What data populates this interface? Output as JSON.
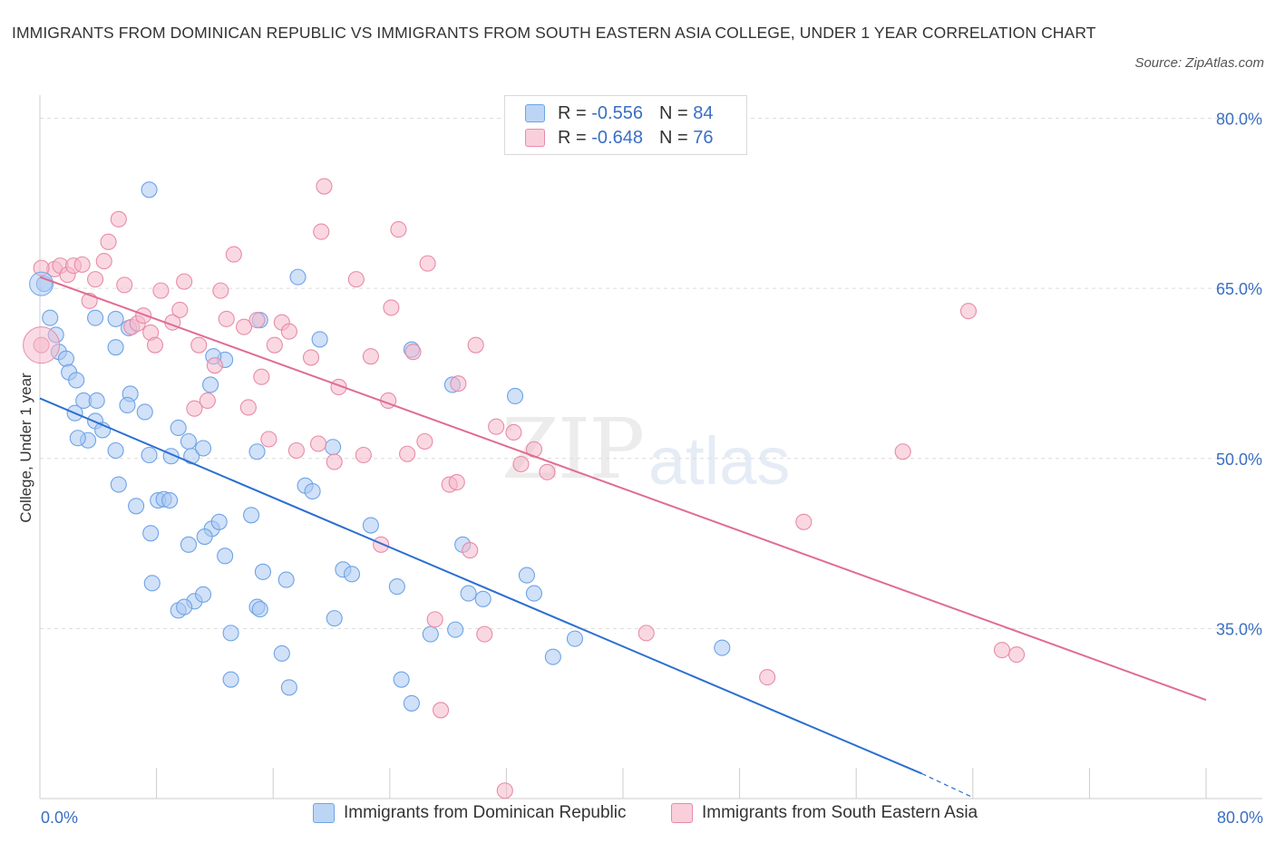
{
  "title": "IMMIGRANTS FROM DOMINICAN REPUBLIC VS IMMIGRANTS FROM SOUTH EASTERN ASIA COLLEGE, UNDER 1 YEAR CORRELATION CHART",
  "source": "Source: ZipAtlas.com",
  "watermark": {
    "zip": "ZIP",
    "atlas": "atlas"
  },
  "legend_top": {
    "rows": [
      {
        "r_label": "R =",
        "r_value": "-0.556",
        "n_label": "N =",
        "n_value": "84",
        "color": "#a9c8f2"
      },
      {
        "r_label": "R =",
        "r_value": "-0.648",
        "n_label": "N =",
        "n_value": "76",
        "color": "#f5b8cb"
      }
    ]
  },
  "chart_data": {
    "type": "scatter",
    "title": "IMMIGRANTS FROM DOMINICAN REPUBLIC VS IMMIGRANTS FROM SOUTH EASTERN ASIA COLLEGE, UNDER 1 YEAR CORRELATION CHART",
    "ylabel": "College, Under 1 year",
    "xlabel": "",
    "xlim": [
      0,
      80
    ],
    "ylim": [
      20,
      81
    ],
    "x_tick_labels": [
      "0.0%",
      "80.0%"
    ],
    "y_ticks": [
      35,
      50,
      65,
      80
    ],
    "y_tick_labels": [
      "35.0%",
      "50.0%",
      "65.0%",
      "80.0%"
    ],
    "grid": "horizontal dashed",
    "legend_position": "bottom",
    "series": [
      {
        "name": "Immigrants from Dominican Republic",
        "color": "#6fa3e6",
        "fill": "#a9c8f2",
        "R": -0.556,
        "N": 84,
        "trend": {
          "x": [
            0,
            60.5
          ],
          "y": [
            55.3,
            22.2
          ],
          "dashed_to": {
            "x": 64,
            "y": 20.1
          }
        },
        "points": [
          [
            0.3,
            65.4
          ],
          [
            0.7,
            62.4
          ],
          [
            1.1,
            60.9
          ],
          [
            1.3,
            59.4
          ],
          [
            1.8,
            58.8
          ],
          [
            2.0,
            57.6
          ],
          [
            2.5,
            56.9
          ],
          [
            3.0,
            55.1
          ],
          [
            2.4,
            54.0
          ],
          [
            3.9,
            55.1
          ],
          [
            3.8,
            53.3
          ],
          [
            4.3,
            52.5
          ],
          [
            3.3,
            51.6
          ],
          [
            2.6,
            51.8
          ],
          [
            5.2,
            50.7
          ],
          [
            6.2,
            55.7
          ],
          [
            6.0,
            54.7
          ],
          [
            7.2,
            54.1
          ],
          [
            5.4,
            47.7
          ],
          [
            6.6,
            45.8
          ],
          [
            7.6,
            43.4
          ],
          [
            8.1,
            46.3
          ],
          [
            8.5,
            46.4
          ],
          [
            8.9,
            46.3
          ],
          [
            9.0,
            50.2
          ],
          [
            7.5,
            50.3
          ],
          [
            9.5,
            52.7
          ],
          [
            10.2,
            51.5
          ],
          [
            10.4,
            50.2
          ],
          [
            11.2,
            50.9
          ],
          [
            11.8,
            43.8
          ],
          [
            12.3,
            44.4
          ],
          [
            10.2,
            42.4
          ],
          [
            11.3,
            43.1
          ],
          [
            12.7,
            41.4
          ],
          [
            7.7,
            39.0
          ],
          [
            10.6,
            37.4
          ],
          [
            11.2,
            38.0
          ],
          [
            9.5,
            36.6
          ],
          [
            9.9,
            36.9
          ],
          [
            13.1,
            34.6
          ],
          [
            13.1,
            30.5
          ],
          [
            14.9,
            50.6
          ],
          [
            15.1,
            62.2
          ],
          [
            12.7,
            58.7
          ],
          [
            11.7,
            56.5
          ],
          [
            14.5,
            45.0
          ],
          [
            15.3,
            40.0
          ],
          [
            14.9,
            36.9
          ],
          [
            15.1,
            36.7
          ],
          [
            16.9,
            39.3
          ],
          [
            17.1,
            29.8
          ],
          [
            16.6,
            32.8
          ],
          [
            18.2,
            47.6
          ],
          [
            18.7,
            47.1
          ],
          [
            20.2,
            35.9
          ],
          [
            20.1,
            51.0
          ],
          [
            20.8,
            40.2
          ],
          [
            21.4,
            39.8
          ],
          [
            22.7,
            44.1
          ],
          [
            24.5,
            38.7
          ],
          [
            24.8,
            30.5
          ],
          [
            25.5,
            28.4
          ],
          [
            26.8,
            34.5
          ],
          [
            25.5,
            59.6
          ],
          [
            28.3,
            56.5
          ],
          [
            28.5,
            34.9
          ],
          [
            29.0,
            42.4
          ],
          [
            29.4,
            38.1
          ],
          [
            30.4,
            37.6
          ],
          [
            32.6,
            55.5
          ],
          [
            33.4,
            39.7
          ],
          [
            33.9,
            38.1
          ],
          [
            35.2,
            32.5
          ],
          [
            36.7,
            34.1
          ],
          [
            46.8,
            33.3
          ],
          [
            7.5,
            73.7
          ],
          [
            17.7,
            66.0
          ],
          [
            19.2,
            60.5
          ],
          [
            3.8,
            62.4
          ],
          [
            5.2,
            62.3
          ],
          [
            6.1,
            61.5
          ],
          [
            5.2,
            59.8
          ],
          [
            11.9,
            59.0
          ]
        ]
      },
      {
        "name": "Immigrants from South Eastern Asia",
        "color": "#e88ba8",
        "fill": "#f5b8cb",
        "R": -0.648,
        "N": 76,
        "trend": {
          "x": [
            0,
            80
          ],
          "y": [
            66.0,
            28.7
          ]
        },
        "points": [
          [
            0.1,
            60.0
          ],
          [
            1.0,
            66.7
          ],
          [
            1.4,
            67.0
          ],
          [
            1.9,
            66.2
          ],
          [
            2.3,
            67.0
          ],
          [
            2.9,
            67.1
          ],
          [
            3.4,
            63.9
          ],
          [
            3.8,
            65.8
          ],
          [
            4.4,
            67.4
          ],
          [
            4.7,
            69.1
          ],
          [
            5.4,
            71.1
          ],
          [
            5.8,
            65.3
          ],
          [
            6.3,
            61.6
          ],
          [
            6.7,
            61.9
          ],
          [
            7.1,
            62.6
          ],
          [
            7.6,
            61.1
          ],
          [
            7.9,
            60.0
          ],
          [
            8.3,
            64.8
          ],
          [
            9.1,
            62.0
          ],
          [
            9.6,
            63.1
          ],
          [
            9.9,
            65.6
          ],
          [
            10.6,
            54.4
          ],
          [
            10.9,
            60.0
          ],
          [
            11.5,
            55.1
          ],
          [
            12.0,
            58.2
          ],
          [
            12.4,
            64.8
          ],
          [
            12.8,
            62.3
          ],
          [
            13.3,
            68.0
          ],
          [
            14.0,
            61.6
          ],
          [
            14.3,
            54.5
          ],
          [
            14.9,
            62.2
          ],
          [
            15.2,
            57.2
          ],
          [
            15.7,
            51.7
          ],
          [
            16.1,
            60.0
          ],
          [
            16.6,
            62.0
          ],
          [
            17.1,
            61.2
          ],
          [
            17.6,
            50.7
          ],
          [
            18.6,
            58.9
          ],
          [
            19.1,
            51.3
          ],
          [
            19.3,
            70.0
          ],
          [
            19.5,
            74.0
          ],
          [
            20.2,
            49.7
          ],
          [
            20.5,
            56.3
          ],
          [
            21.7,
            65.8
          ],
          [
            22.2,
            50.3
          ],
          [
            22.7,
            59.0
          ],
          [
            23.4,
            42.4
          ],
          [
            23.9,
            55.1
          ],
          [
            24.1,
            63.3
          ],
          [
            24.6,
            70.2
          ],
          [
            25.2,
            50.4
          ],
          [
            25.6,
            59.4
          ],
          [
            26.4,
            51.5
          ],
          [
            26.6,
            67.2
          ],
          [
            27.1,
            35.8
          ],
          [
            27.5,
            27.8
          ],
          [
            28.1,
            47.7
          ],
          [
            28.6,
            47.9
          ],
          [
            28.7,
            56.6
          ],
          [
            29.5,
            41.9
          ],
          [
            29.9,
            60.0
          ],
          [
            30.5,
            34.5
          ],
          [
            31.3,
            52.8
          ],
          [
            31.9,
            20.7
          ],
          [
            32.5,
            52.3
          ],
          [
            33.0,
            49.5
          ],
          [
            33.9,
            50.8
          ],
          [
            34.8,
            48.8
          ],
          [
            41.6,
            34.6
          ],
          [
            49.9,
            30.7
          ],
          [
            52.4,
            44.4
          ],
          [
            59.2,
            50.6
          ],
          [
            63.7,
            63.0
          ],
          [
            66.0,
            33.1
          ],
          [
            67.0,
            32.7
          ],
          [
            0.1,
            66.8
          ]
        ]
      }
    ]
  },
  "legend_bottom": [
    {
      "label": "Immigrants from Dominican Republic",
      "color": "#a9c8f2",
      "border": "#6fa3e6"
    },
    {
      "label": "Immigrants from South Eastern Asia",
      "color": "#f5b8cb",
      "border": "#e88ba8"
    }
  ]
}
